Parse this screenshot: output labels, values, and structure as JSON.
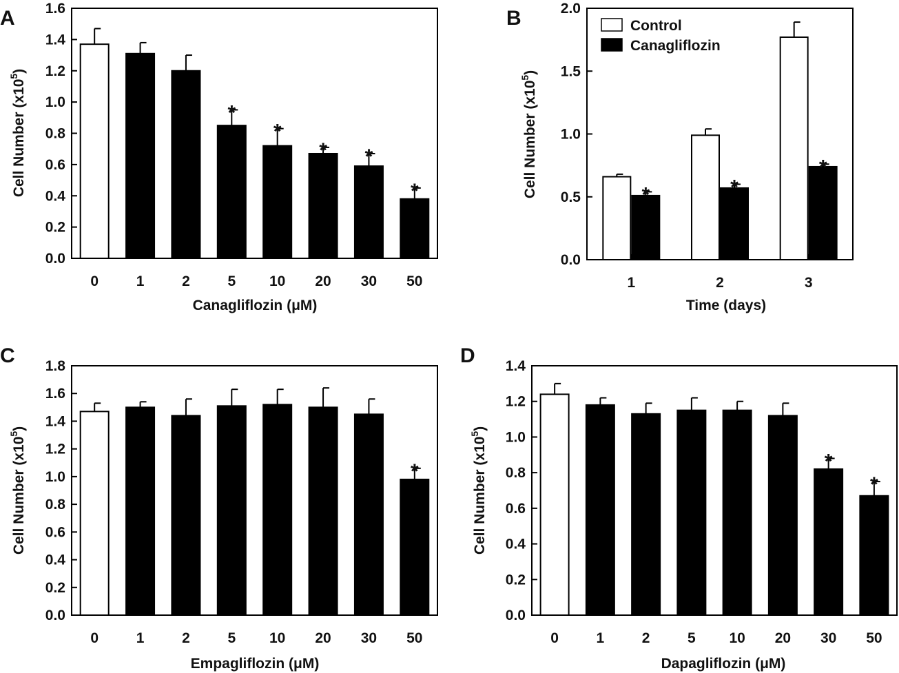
{
  "figure": {
    "ylabel_main": "Cell Number (x10",
    "ylabel_exp": "5",
    "ylabel_close": ")",
    "sig_marker": "*"
  },
  "chart_data": [
    {
      "panel": "A",
      "type": "bar",
      "title": "",
      "xlabel": "Canagliflozin (μM)",
      "ylabel": "Cell Number (x10^5)",
      "ylim": [
        0,
        1.6
      ],
      "yticks": [
        "0.0",
        "0.2",
        "0.4",
        "0.6",
        "0.8",
        "1.0",
        "1.2",
        "1.4",
        "1.6"
      ],
      "categories": [
        "0",
        "1",
        "2",
        "5",
        "10",
        "20",
        "30",
        "50"
      ],
      "values": [
        1.37,
        1.31,
        1.2,
        0.85,
        0.72,
        0.67,
        0.59,
        0.38
      ],
      "errors": [
        0.1,
        0.07,
        0.1,
        0.1,
        0.11,
        0.04,
        0.08,
        0.07
      ],
      "fills": [
        "white",
        "black",
        "black",
        "black",
        "black",
        "black",
        "black",
        "black"
      ],
      "significant": [
        false,
        false,
        false,
        true,
        true,
        true,
        true,
        true
      ]
    },
    {
      "panel": "B",
      "type": "bar",
      "title": "",
      "xlabel": "Time (days)",
      "ylabel": "Cell Number (x10^5)",
      "ylim": [
        0,
        2.0
      ],
      "yticks": [
        "0.0",
        "0.5",
        "1.0",
        "1.5",
        "2.0"
      ],
      "categories": [
        "1",
        "2",
        "3"
      ],
      "series": [
        {
          "name": "Control",
          "fill": "white",
          "values": [
            0.66,
            0.99,
            1.77
          ],
          "errors": [
            0.02,
            0.05,
            0.12
          ],
          "significant": [
            false,
            false,
            false
          ]
        },
        {
          "name": "Canagliflozin",
          "fill": "black",
          "values": [
            0.51,
            0.57,
            0.74
          ],
          "errors": [
            0.03,
            0.03,
            0.02
          ],
          "significant": [
            true,
            true,
            true
          ]
        }
      ],
      "legend": "top-left"
    },
    {
      "panel": "C",
      "type": "bar",
      "title": "",
      "xlabel": "Empagliflozin (μM)",
      "ylabel": "Cell Number (x10^5)",
      "ylim": [
        0,
        1.8
      ],
      "yticks": [
        "0.0",
        "0.2",
        "0.4",
        "0.6",
        "0.8",
        "1.0",
        "1.2",
        "1.4",
        "1.6",
        "1.8"
      ],
      "categories": [
        "0",
        "1",
        "2",
        "5",
        "10",
        "20",
        "30",
        "50"
      ],
      "values": [
        1.47,
        1.5,
        1.44,
        1.51,
        1.52,
        1.5,
        1.45,
        0.98
      ],
      "errors": [
        0.06,
        0.04,
        0.12,
        0.12,
        0.11,
        0.14,
        0.11,
        0.08
      ],
      "fills": [
        "white",
        "black",
        "black",
        "black",
        "black",
        "black",
        "black",
        "black"
      ],
      "significant": [
        false,
        false,
        false,
        false,
        false,
        false,
        false,
        true
      ]
    },
    {
      "panel": "D",
      "type": "bar",
      "title": "",
      "xlabel": "Dapagliflozin (μM)",
      "ylabel": "Cell Number (x10^5)",
      "ylim": [
        0,
        1.4
      ],
      "yticks": [
        "0.0",
        "0.2",
        "0.4",
        "0.6",
        "0.8",
        "1.0",
        "1.2",
        "1.4"
      ],
      "categories": [
        "0",
        "1",
        "2",
        "5",
        "10",
        "20",
        "30",
        "50"
      ],
      "values": [
        1.24,
        1.18,
        1.13,
        1.15,
        1.15,
        1.12,
        0.82,
        0.67
      ],
      "errors": [
        0.06,
        0.04,
        0.06,
        0.07,
        0.05,
        0.07,
        0.06,
        0.08
      ],
      "fills": [
        "white",
        "black",
        "black",
        "black",
        "black",
        "black",
        "black",
        "black"
      ],
      "significant": [
        false,
        false,
        false,
        false,
        false,
        false,
        true,
        true
      ]
    }
  ]
}
